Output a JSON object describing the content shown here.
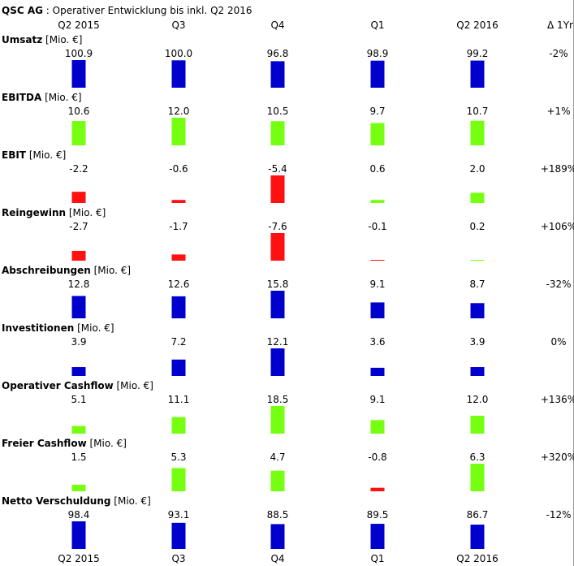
{
  "chart_data": {
    "type": "bar",
    "title_company": "QSC AG",
    "title_rest": " : Operativer Entwicklung bis inkl. Q2 2016",
    "categories": [
      "Q2 2015",
      "Q3",
      "Q4",
      "Q1",
      "Q2 2016"
    ],
    "delta_header": "Δ 1Yr",
    "colors": {
      "revenue": "#0000cc",
      "positive": "#77ff11",
      "negative": "#ff1111"
    },
    "metrics": [
      {
        "name": "Umsatz",
        "unit": "[Mio. €]",
        "values": [
          100.9,
          100.0,
          96.8,
          98.9,
          99.2
        ],
        "labels": [
          "100.9",
          "100.0",
          "96.8",
          "98.9",
          "99.2"
        ],
        "delta": "-2%",
        "style": "blue"
      },
      {
        "name": "EBITDA",
        "unit": "[Mio. €]",
        "values": [
          10.6,
          12.0,
          10.5,
          9.7,
          10.7
        ],
        "labels": [
          "10.6",
          "12.0",
          "10.5",
          "9.7",
          "10.7"
        ],
        "delta": "+1%",
        "style": "signed"
      },
      {
        "name": "EBIT",
        "unit": "[Mio. €]",
        "values": [
          -2.2,
          -0.6,
          -5.4,
          0.6,
          2.0
        ],
        "labels": [
          "-2.2",
          "-0.6",
          "-5.4",
          "0.6",
          "2.0"
        ],
        "delta": "+189%",
        "style": "signed"
      },
      {
        "name": "Reingewinn",
        "unit": "[Mio. €]",
        "values": [
          -2.7,
          -1.7,
          -7.6,
          -0.1,
          0.2
        ],
        "labels": [
          "-2.7",
          "-1.7",
          "-7.6",
          "-0.1",
          "0.2"
        ],
        "delta": "+106%",
        "style": "signed"
      },
      {
        "name": "Abschreibungen",
        "unit": "[Mio. €]",
        "values": [
          12.8,
          12.6,
          15.8,
          9.1,
          8.7
        ],
        "labels": [
          "12.8",
          "12.6",
          "15.8",
          "9.1",
          "8.7"
        ],
        "delta": "-32%",
        "style": "blue"
      },
      {
        "name": "Investitionen",
        "unit": "[Mio. €]",
        "values": [
          3.9,
          7.2,
          12.1,
          3.6,
          3.9
        ],
        "labels": [
          "3.9",
          "7.2",
          "12.1",
          "3.6",
          "3.9"
        ],
        "delta": "0%",
        "style": "blue"
      },
      {
        "name": "Operativer Cashflow",
        "unit": "[Mio. €]",
        "values": [
          5.1,
          11.1,
          18.5,
          9.1,
          12.0
        ],
        "labels": [
          "5.1",
          "11.1",
          "18.5",
          "9.1",
          "12.0"
        ],
        "delta": "+136%",
        "style": "signed"
      },
      {
        "name": "Freier Cashflow",
        "unit": "[Mio. €]",
        "values": [
          1.5,
          5.3,
          4.7,
          -0.8,
          6.3
        ],
        "labels": [
          "1.5",
          "5.3",
          "4.7",
          "-0.8",
          "6.3"
        ],
        "delta": "+320%",
        "style": "signed"
      },
      {
        "name": "Netto Verschuldung",
        "unit": "[Mio. €]",
        "values": [
          98.4,
          93.1,
          88.5,
          89.5,
          86.7
        ],
        "labels": [
          "98.4",
          "93.1",
          "88.5",
          "89.5",
          "86.7"
        ],
        "delta": "-12%",
        "style": "blue"
      }
    ]
  }
}
